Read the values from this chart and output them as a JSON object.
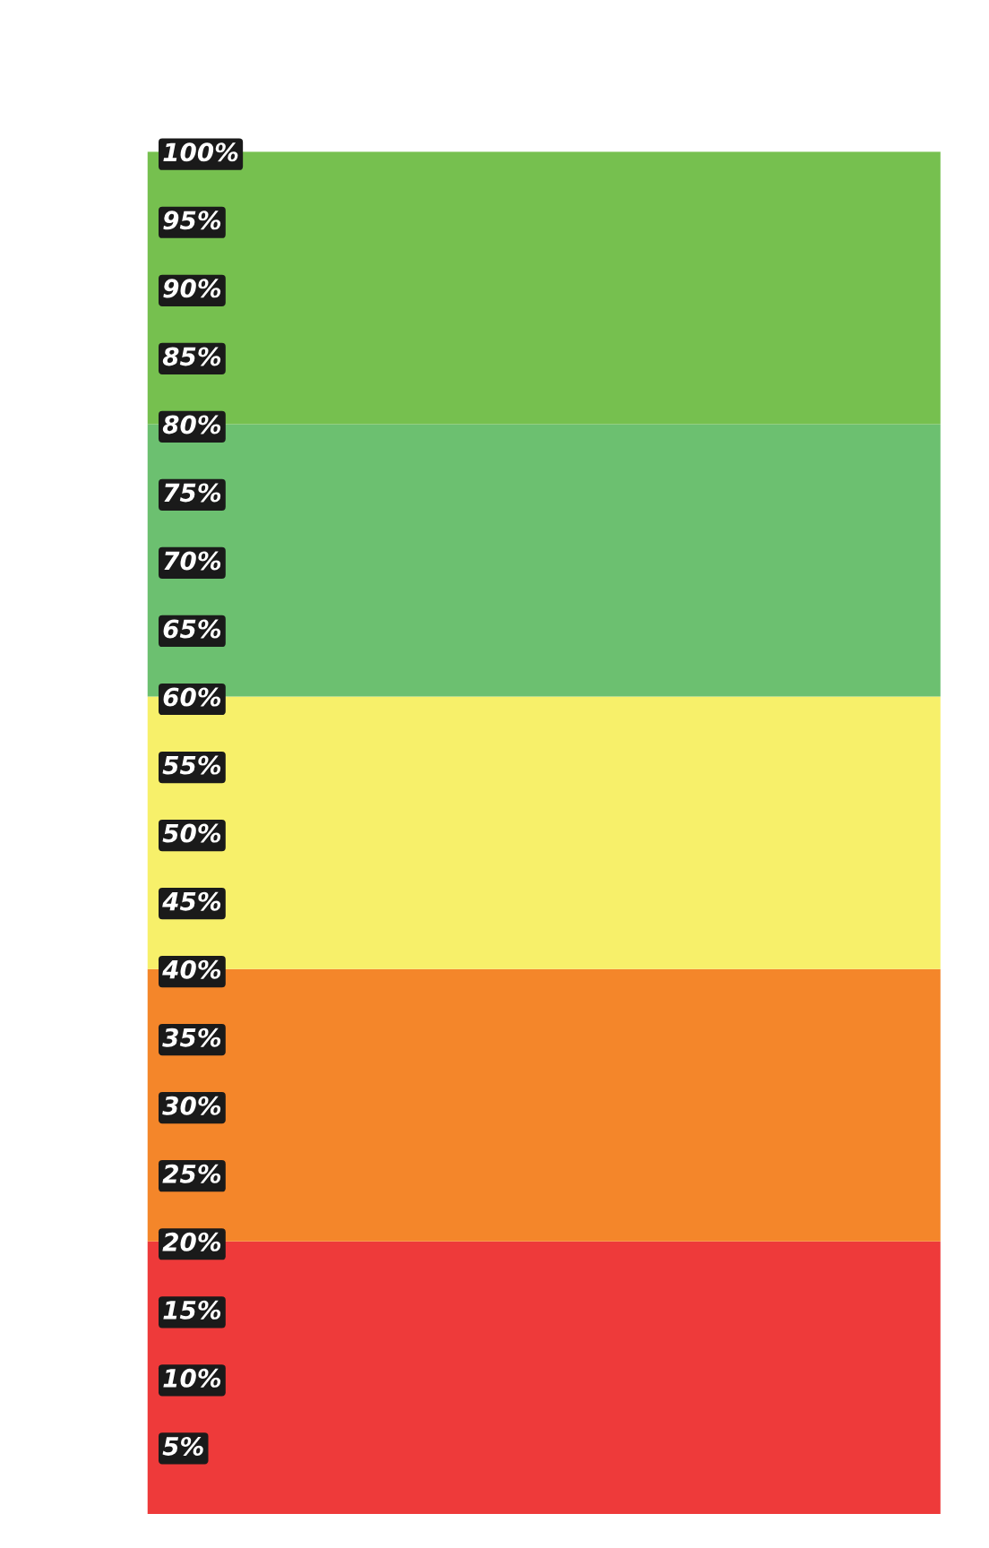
{
  "chart_data": {
    "type": "bar",
    "stacked": true,
    "categories": [
      null
    ],
    "series": [
      {
        "color": "#ee3a3a",
        "values": [
          20
        ]
      },
      {
        "color": "#f4862a",
        "values": [
          20
        ]
      },
      {
        "color": "#f7f06a",
        "values": [
          20
        ]
      },
      {
        "color": "#6cc070",
        "values": [
          20
        ]
      },
      {
        "color": "#76c04f",
        "values": [
          20
        ]
      }
    ],
    "ylim": [
      0,
      100
    ],
    "yticks": [
      {
        "value": 5,
        "label": "5%"
      },
      {
        "value": 10,
        "label": "10%"
      },
      {
        "value": 15,
        "label": "15%"
      },
      {
        "value": 20,
        "label": "20%"
      },
      {
        "value": 25,
        "label": "25%"
      },
      {
        "value": 30,
        "label": "30%"
      },
      {
        "value": 35,
        "label": "35%"
      },
      {
        "value": 40,
        "label": "40%"
      },
      {
        "value": 45,
        "label": "45%"
      },
      {
        "value": 50,
        "label": "50%"
      },
      {
        "value": 55,
        "label": "55%"
      },
      {
        "value": 60,
        "label": "60%"
      },
      {
        "value": 65,
        "label": "65%"
      },
      {
        "value": 70,
        "label": "70%"
      },
      {
        "value": 75,
        "label": "75%"
      },
      {
        "value": 80,
        "label": "80%"
      },
      {
        "value": 85,
        "label": "85%"
      },
      {
        "value": 90,
        "label": "90%"
      },
      {
        "value": 95,
        "label": "95%"
      },
      {
        "value": 100,
        "label": "100%"
      }
    ],
    "tick_labels": "y",
    "grid": false
  }
}
